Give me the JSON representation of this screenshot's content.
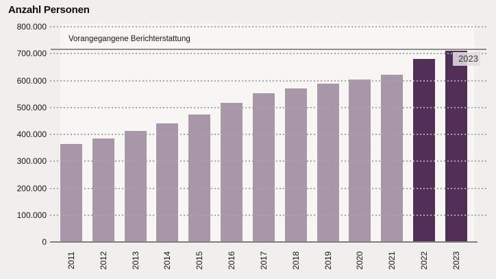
{
  "page": {
    "title": "Anzahl Personen"
  },
  "annotations": {
    "reference_line_label": "Vorangegangene Berichterstattung",
    "highlight_label": "2023"
  },
  "colors": {
    "background": "#f1efec",
    "plot_background": "#f8f6f3",
    "bar": "#a797a9",
    "bar_highlight": "#522f56",
    "gridline_dots": "#a8a6a3",
    "axis_line": "#7e7e7b",
    "reference_line": "#8e8e8b",
    "highlight_label_background": "#e2dce0",
    "text": "#131313"
  },
  "chart_data": {
    "type": "bar",
    "title": "Anzahl Personen",
    "categories": [
      "2011",
      "2012",
      "2013",
      "2014",
      "2015",
      "2016",
      "2017",
      "2018",
      "2019",
      "2020",
      "2021",
      "2022",
      "2023"
    ],
    "values": [
      365000,
      385000,
      412000,
      442000,
      475000,
      518000,
      552000,
      572000,
      588000,
      603000,
      621000,
      680000,
      710000
    ],
    "highlight_categories": [
      "2022",
      "2023"
    ],
    "reference_line": {
      "value": 715000,
      "label": "Vorangegangene Berichterstattung"
    },
    "xlabel": "",
    "ylabel": "Anzahl Personen",
    "ylim": [
      0,
      800000
    ],
    "yticks": [
      0,
      100000,
      200000,
      300000,
      400000,
      500000,
      600000,
      700000,
      800000
    ],
    "ytick_labels": [
      "0",
      "100.000",
      "200.000",
      "300.000",
      "400.000",
      "500.000",
      "600.000",
      "700.000",
      "800.000"
    ],
    "grid": "horizontal-dotted",
    "legend_position": "none",
    "x_tick_rotation_deg": 90
  }
}
